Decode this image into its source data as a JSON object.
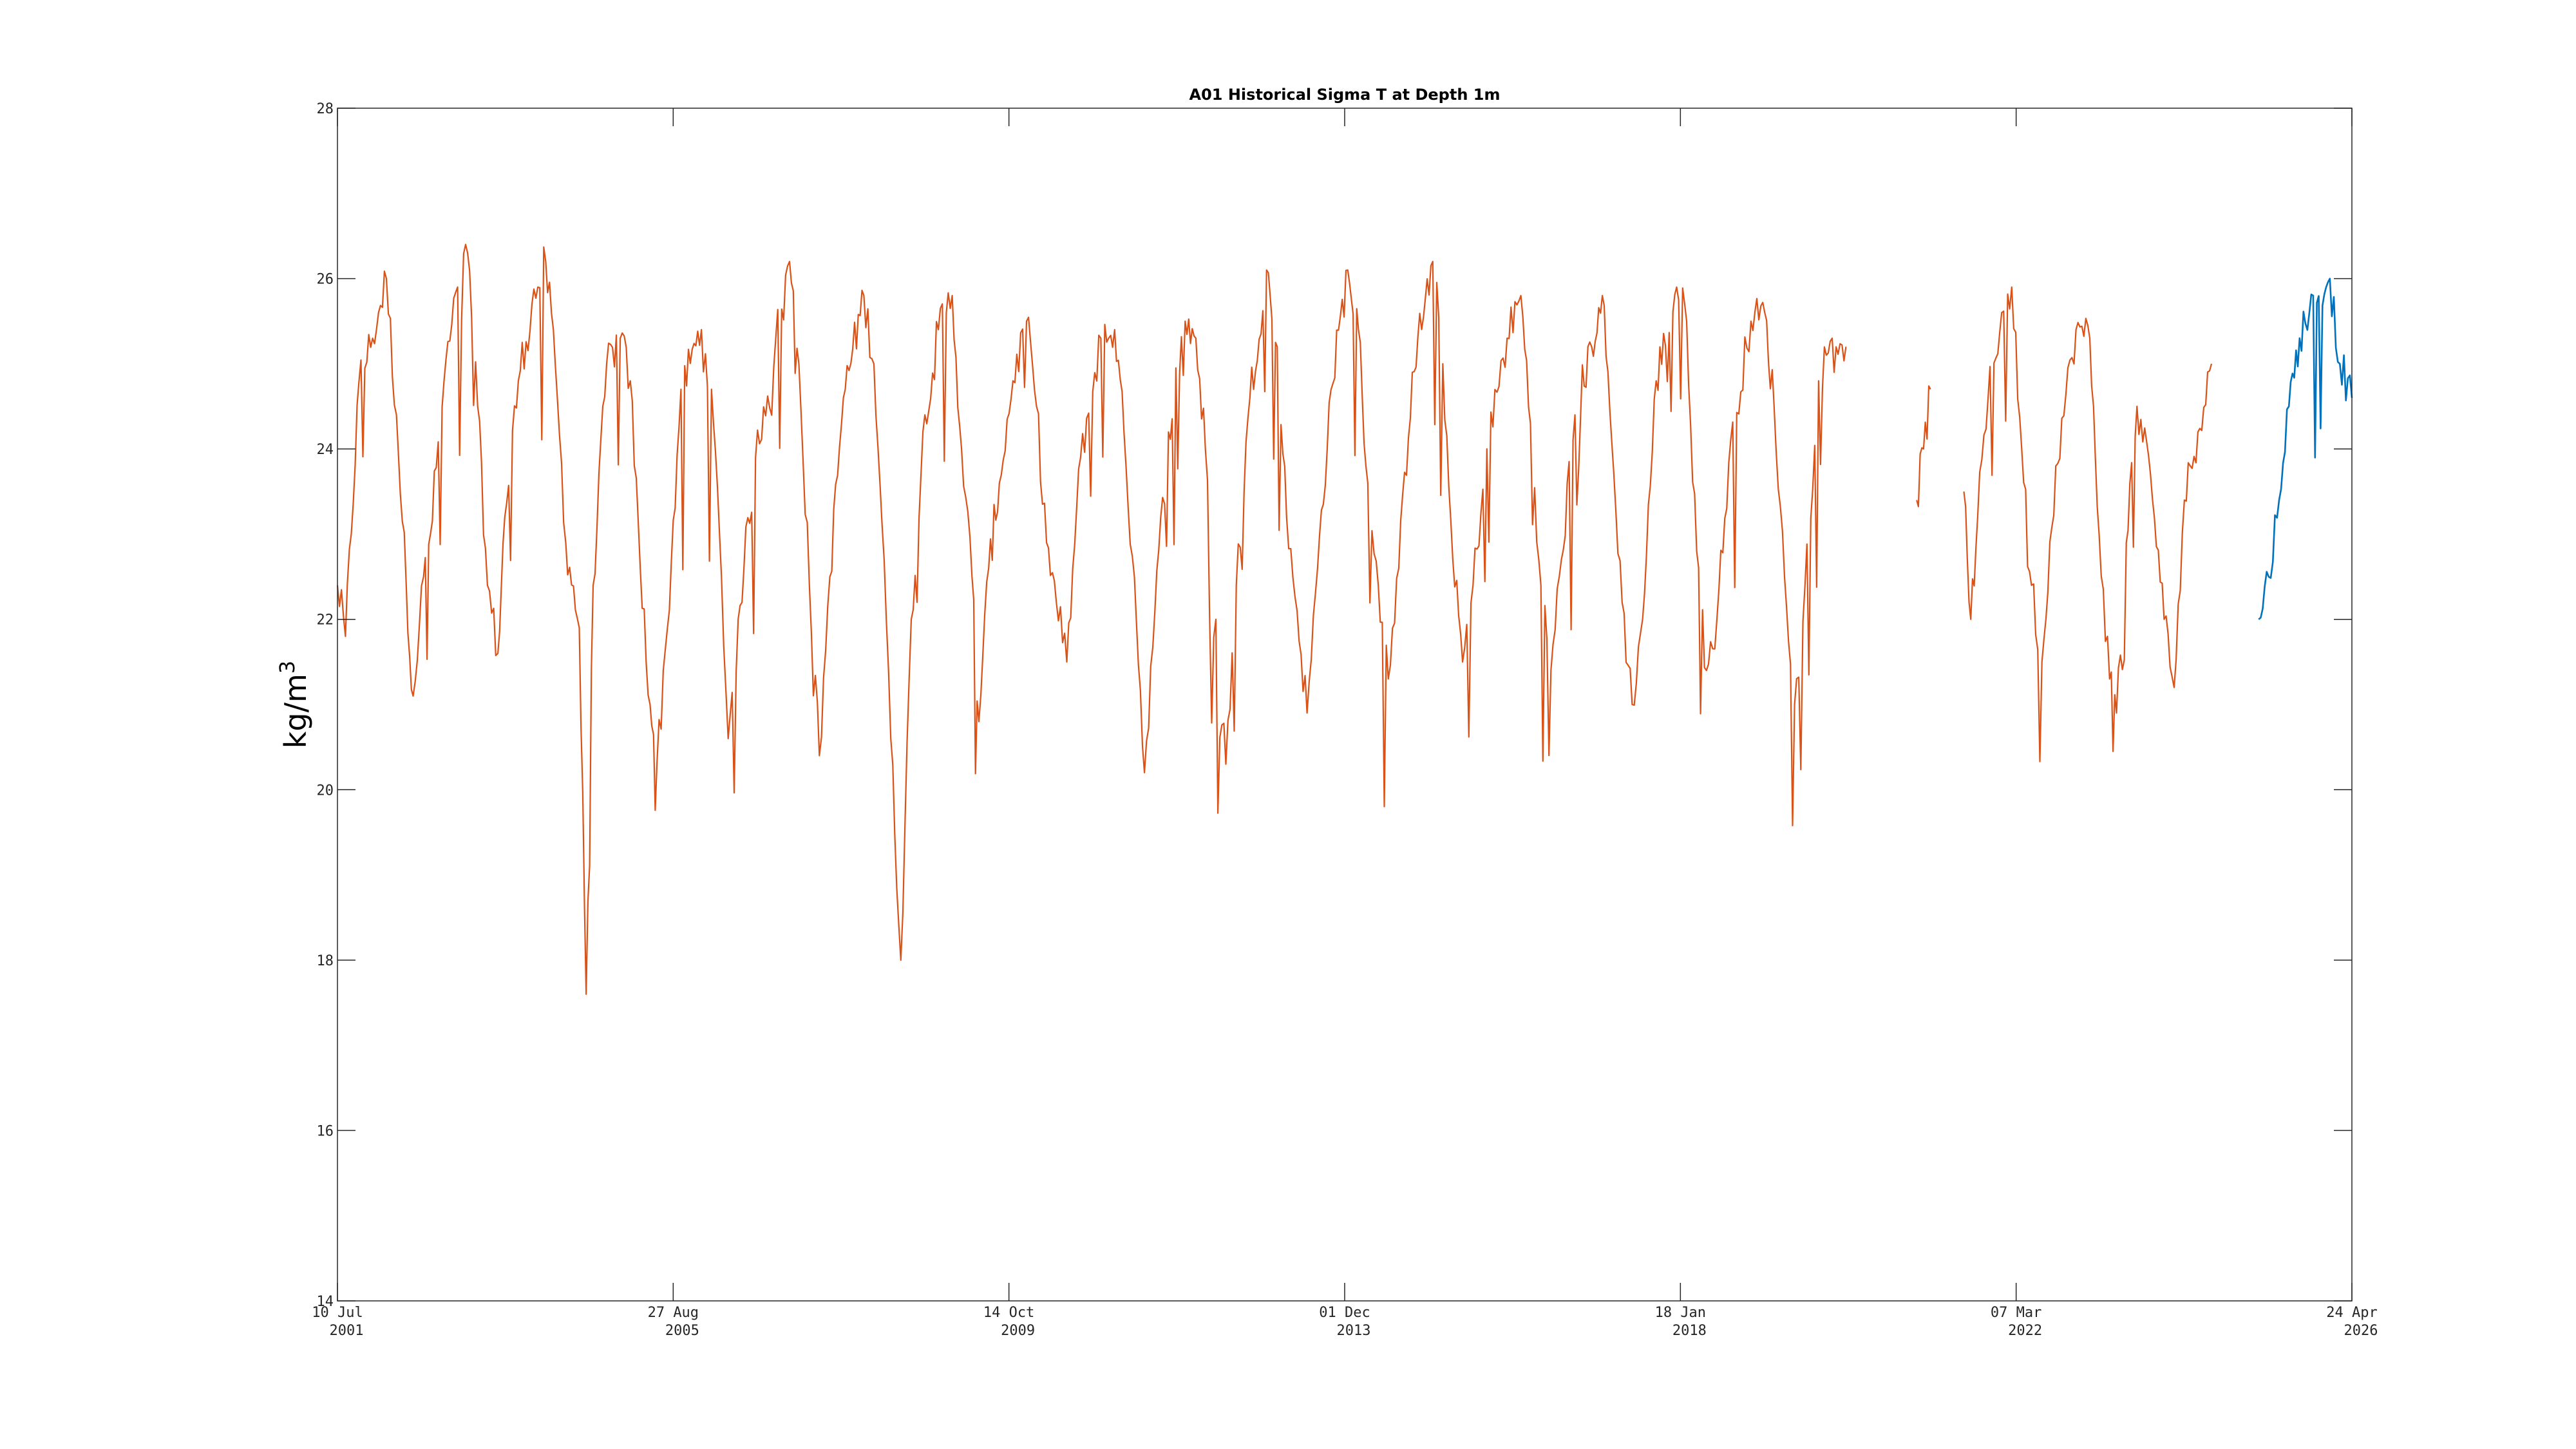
{
  "chart_data": {
    "type": "line",
    "title": "A01 Historical Sigma T at Depth 1m",
    "xlabel": "",
    "ylabel": "kg/m",
    "ylabel_superscript": "3",
    "ylim": [
      14,
      28
    ],
    "yticks": [
      14,
      16,
      18,
      20,
      22,
      24,
      26,
      28
    ],
    "xlim": [
      "2001-07-10",
      "2026-04-24"
    ],
    "xticks": [
      {
        "date": "2001-07-10",
        "line1": "10 Jul",
        "line2": "2001"
      },
      {
        "date": "2005-08-27",
        "line1": "27 Aug",
        "line2": "2005"
      },
      {
        "date": "2009-10-14",
        "line1": "14 Oct",
        "line2": "2009"
      },
      {
        "date": "2013-12-01",
        "line1": "01 Dec",
        "line2": "2013"
      },
      {
        "date": "2018-01-18",
        "line1": "18 Jan",
        "line2": "2018"
      },
      {
        "date": "2022-03-07",
        "line1": "07 Mar",
        "line2": "2022"
      },
      {
        "date": "2026-04-24",
        "line1": "24 Apr",
        "line2": "2026"
      }
    ],
    "grid": false,
    "legend": "none",
    "series": [
      {
        "color": "#D95319",
        "segments": [
          [
            [
              "2001-07-10",
              22.4
            ],
            [
              "2001-08-15",
              21.8
            ],
            [
              "2001-10-15",
              24.8
            ],
            [
              "2001-12-15",
              25.3
            ],
            [
              "2002-02-15",
              26.0
            ],
            [
              "2002-04-01",
              24.4
            ],
            [
              "2002-05-15",
              22.4
            ],
            [
              "2002-06-15",
              21.1
            ],
            [
              "2002-08-01",
              22.5
            ],
            [
              "2002-09-01",
              23.0
            ],
            [
              "2002-11-01",
              24.8
            ],
            [
              "2003-01-01",
              25.9
            ],
            [
              "2003-02-15",
              26.3
            ],
            [
              "2003-04-01",
              24.5
            ],
            [
              "2003-05-15",
              22.4
            ],
            [
              "2003-07-01",
              21.6
            ],
            [
              "2003-08-01",
              23.2
            ],
            [
              "2003-10-01",
              24.8
            ],
            [
              "2003-12-01",
              25.7
            ],
            [
              "2004-02-01",
              26.2
            ],
            [
              "2004-03-15",
              25.0
            ],
            [
              "2004-05-01",
              22.9
            ],
            [
              "2004-07-01",
              21.9
            ],
            [
              "2004-08-01",
              17.6
            ],
            [
              "2004-09-01",
              22.4
            ],
            [
              "2004-11-01",
              25.0
            ],
            [
              "2005-01-01",
              25.3
            ],
            [
              "2005-02-15",
              24.8
            ],
            [
              "2005-04-01",
              22.6
            ],
            [
              "2005-05-15",
              21.0
            ],
            [
              "2005-06-15",
              20.3
            ],
            [
              "2005-08-01",
              21.9
            ],
            [
              "2005-10-01",
              24.7
            ],
            [
              "2006-01-01",
              25.4
            ],
            [
              "2006-02-15",
              24.7
            ],
            [
              "2006-04-01",
              22.5
            ],
            [
              "2006-05-01",
              20.6
            ],
            [
              "2006-06-15",
              22.0
            ],
            [
              "2006-09-01",
              23.9
            ],
            [
              "2006-12-01",
              25.3
            ],
            [
              "2007-02-01",
              26.2
            ],
            [
              "2007-03-15",
              25.0
            ],
            [
              "2007-05-01",
              22.4
            ],
            [
              "2007-06-15",
              20.4
            ],
            [
              "2007-08-01",
              22.5
            ],
            [
              "2007-10-01",
              24.6
            ],
            [
              "2008-01-01",
              25.8
            ],
            [
              "2008-02-15",
              25.0
            ],
            [
              "2008-04-01",
              22.7
            ],
            [
              "2008-05-01",
              20.6
            ],
            [
              "2008-06-15",
              18.0
            ],
            [
              "2008-08-01",
              22.0
            ],
            [
              "2008-10-01",
              24.4
            ],
            [
              "2008-12-01",
              25.4
            ],
            [
              "2009-02-01",
              25.8
            ],
            [
              "2009-03-15",
              24.0
            ],
            [
              "2009-05-01",
              22.5
            ],
            [
              "2009-06-01",
              20.8
            ],
            [
              "2009-07-15",
              22.6
            ],
            [
              "2009-09-01",
              23.6
            ],
            [
              "2009-11-01",
              24.8
            ],
            [
              "2010-01-01",
              25.5
            ],
            [
              "2010-02-15",
              24.5
            ],
            [
              "2010-04-01",
              22.9
            ],
            [
              "2010-05-15",
              22.2
            ],
            [
              "2010-07-01",
              21.5
            ],
            [
              "2010-09-01",
              23.9
            ],
            [
              "2010-12-01",
              25.3
            ],
            [
              "2011-02-01",
              25.4
            ],
            [
              "2011-03-15",
              24.2
            ],
            [
              "2011-05-01",
              22.5
            ],
            [
              "2011-06-15",
              20.2
            ],
            [
              "2011-08-01",
              22.1
            ],
            [
              "2011-10-01",
              24.2
            ],
            [
              "2011-12-15",
              25.5
            ],
            [
              "2012-02-01",
              25.3
            ],
            [
              "2012-03-15",
              24.0
            ],
            [
              "2012-05-01",
              22.0
            ],
            [
              "2012-06-15",
              20.3
            ],
            [
              "2012-08-01",
              22.4
            ],
            [
              "2012-10-01",
              24.6
            ],
            [
              "2012-12-15",
              26.1
            ],
            [
              "2013-02-01",
              25.2
            ],
            [
              "2013-03-15",
              23.2
            ],
            [
              "2013-05-01",
              22.1
            ],
            [
              "2013-06-15",
              20.9
            ],
            [
              "2013-08-01",
              22.6
            ],
            [
              "2013-10-01",
              24.7
            ],
            [
              "2013-12-15",
              26.1
            ],
            [
              "2014-02-01",
              25.4
            ],
            [
              "2014-03-15",
              23.6
            ],
            [
              "2014-05-01",
              22.4
            ],
            [
              "2014-06-15",
              21.3
            ],
            [
              "2014-08-01",
              22.6
            ],
            [
              "2014-10-01",
              24.9
            ],
            [
              "2015-01-01",
              26.2
            ],
            [
              "2015-02-15",
              25.0
            ],
            [
              "2015-04-01",
              22.7
            ],
            [
              "2015-05-15",
              21.5
            ],
            [
              "2015-07-01",
              22.4
            ],
            [
              "2015-09-01",
              24.0
            ],
            [
              "2015-12-01",
              25.3
            ],
            [
              "2016-02-01",
              25.8
            ],
            [
              "2016-03-15",
              24.3
            ],
            [
              "2016-05-01",
              22.4
            ],
            [
              "2016-06-15",
              21.4
            ],
            [
              "2016-08-01",
              22.7
            ],
            [
              "2016-10-01",
              24.4
            ],
            [
              "2016-12-15",
              25.2
            ],
            [
              "2017-02-01",
              25.8
            ],
            [
              "2017-03-15",
              24.1
            ],
            [
              "2017-05-01",
              22.2
            ],
            [
              "2017-06-15",
              21.0
            ],
            [
              "2017-08-01",
              22.0
            ],
            [
              "2017-10-01",
              24.8
            ],
            [
              "2018-01-01",
              25.9
            ],
            [
              "2018-02-15",
              25.5
            ],
            [
              "2018-04-01",
              22.8
            ],
            [
              "2018-05-15",
              21.4
            ],
            [
              "2018-07-01",
              22.0
            ],
            [
              "2018-09-01",
              24.1
            ],
            [
              "2018-12-01",
              25.5
            ],
            [
              "2019-02-01",
              25.6
            ],
            [
              "2019-03-15",
              24.5
            ],
            [
              "2019-05-01",
              22.5
            ],
            [
              "2019-06-15",
              21.0
            ],
            [
              "2019-08-01",
              22.4
            ],
            [
              "2019-10-01",
              24.8
            ],
            [
              "2019-12-01",
              25.3
            ],
            [
              "2020-02-01",
              25.2
            ]
          ],
          [
            [
              "2020-12-15",
              23.4
            ],
            [
              "2021-01-15",
              24.0
            ],
            [
              "2021-02-15",
              24.7
            ]
          ],
          [
            [
              "2021-07-15",
              23.5
            ],
            [
              "2021-08-15",
              22.0
            ],
            [
              "2021-09-15",
              23.2
            ],
            [
              "2021-11-01",
              24.6
            ],
            [
              "2022-01-01",
              25.6
            ],
            [
              "2022-02-15",
              25.9
            ],
            [
              "2022-04-01",
              24.0
            ],
            [
              "2022-05-15",
              22.4
            ],
            [
              "2022-07-01",
              21.5
            ],
            [
              "2022-09-01",
              23.8
            ],
            [
              "2022-12-01",
              25.4
            ],
            [
              "2023-02-01",
              25.3
            ],
            [
              "2023-03-15",
              23.0
            ],
            [
              "2023-05-01",
              21.3
            ],
            [
              "2023-06-01",
              20.9
            ],
            [
              "2023-07-15",
              22.9
            ],
            [
              "2023-09-01",
              24.5
            ],
            [
              "2023-11-01",
              23.7
            ],
            [
              "2024-01-01",
              22.0
            ],
            [
              "2024-02-15",
              21.2
            ],
            [
              "2024-04-01",
              23.4
            ],
            [
              "2024-06-01",
              24.2
            ],
            [
              "2024-08-01",
              25.0
            ]
          ]
        ]
      },
      {
        "color": "#0072BD",
        "segments": [
          [
            [
              "2025-03-01",
              22.0
            ],
            [
              "2025-04-15",
              22.5
            ],
            [
              "2025-06-01",
              23.4
            ],
            [
              "2025-07-15",
              24.5
            ],
            [
              "2025-09-01",
              25.3
            ],
            [
              "2025-11-01",
              25.8
            ],
            [
              "2026-01-15",
              26.0
            ],
            [
              "2026-03-01",
              25.0
            ],
            [
              "2026-04-24",
              24.6
            ]
          ]
        ]
      }
    ]
  }
}
